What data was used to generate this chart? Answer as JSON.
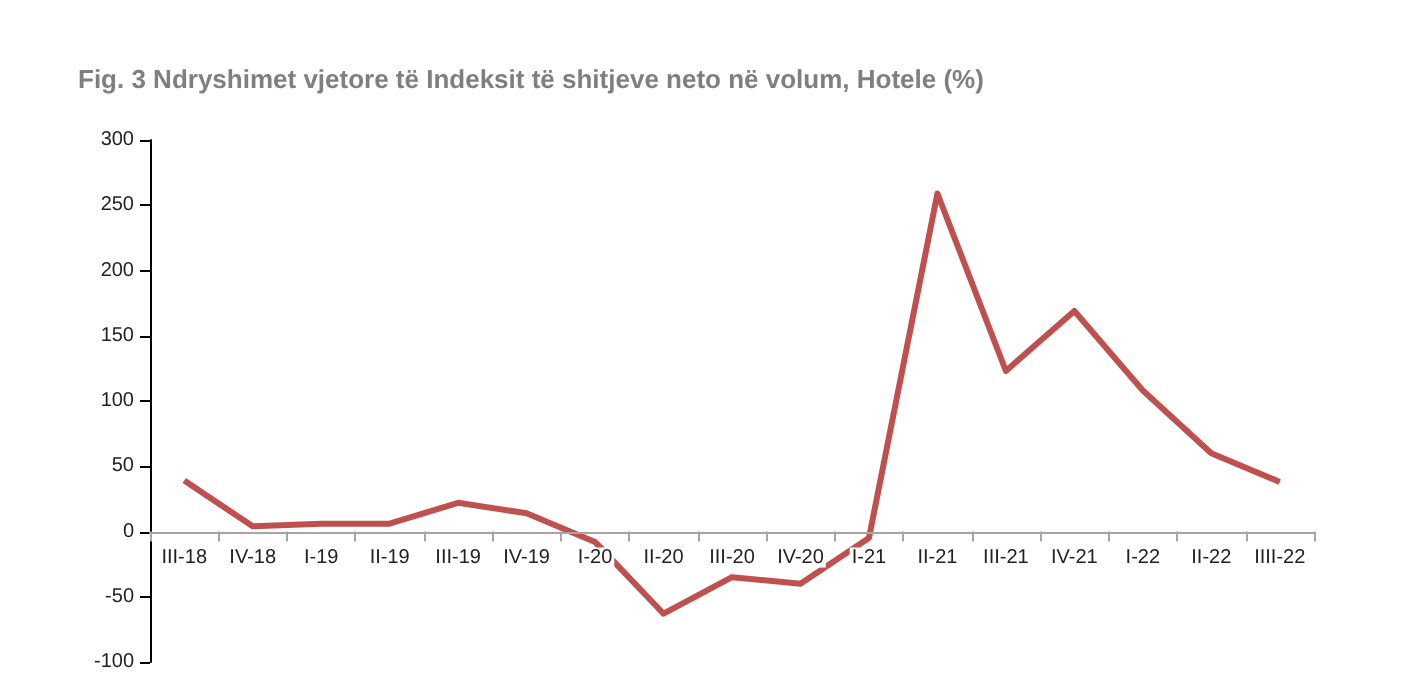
{
  "chart_data": {
    "type": "line",
    "title": "Fig. 3 Ndryshimet vjetore të Indeksit të shitjeve neto në volum, Hotele (%)",
    "categories": [
      "III-18",
      "IV-18",
      "I-19",
      "II-19",
      "III-19",
      "IV-19",
      "I-20",
      "II-20",
      "III-20",
      "IV-20",
      "I-21",
      "II-21",
      "III-21",
      "IV-21",
      "I-22",
      "II-22",
      "IIII-22"
    ],
    "series": [
      {
        "color": "#c0504d",
        "values": [
          39,
          4,
          6,
          6,
          22,
          14,
          -8,
          -63,
          -35,
          -40,
          -5,
          259,
          123,
          169,
          108,
          60,
          38
        ]
      }
    ],
    "ylim": [
      -100,
      300
    ],
    "yticks": [
      -100,
      -50,
      0,
      50,
      100,
      150,
      200,
      250,
      300
    ],
    "marker": "none",
    "line_style": "solid"
  }
}
